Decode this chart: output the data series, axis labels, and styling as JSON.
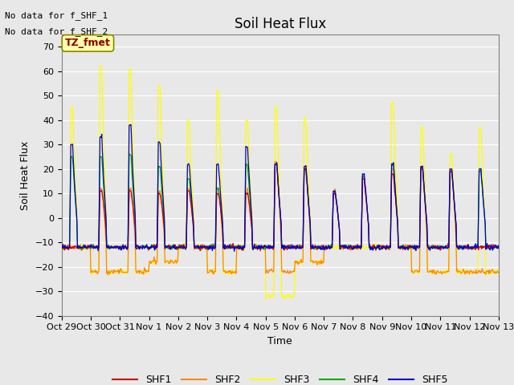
{
  "title": "Soil Heat Flux",
  "xlabel": "Time",
  "ylabel": "Soil Heat Flux",
  "ylim": [
    -40,
    75
  ],
  "yticks": [
    -40,
    -30,
    -20,
    -10,
    0,
    10,
    20,
    30,
    40,
    50,
    60,
    70
  ],
  "bg_color": "#e8e8e8",
  "plot_bg_color": "#e8e8e8",
  "annotation_text1": "No data for f_SHF_1",
  "annotation_text2": "No data for f_SHF_2",
  "tz_label": "TZ_fmet",
  "legend_labels": [
    "SHF1",
    "SHF2",
    "SHF3",
    "SHF4",
    "SHF5"
  ],
  "colors": {
    "SHF1": "#cc0000",
    "SHF2": "#ff8800",
    "SHF3": "#ffff00",
    "SHF4": "#00aa00",
    "SHF5": "#0000cc"
  },
  "x_tick_labels": [
    "Oct 29",
    "Oct 30",
    "Oct 31",
    "Nov 1",
    "Nov 2",
    "Nov 3",
    "Nov 4",
    "Nov 5",
    "Nov 6",
    "Nov 7",
    "Nov 8",
    "Nov 9",
    "Nov 10",
    "Nov 11",
    "Nov 12",
    "Nov 13"
  ],
  "num_days": 15,
  "points_per_day": 48,
  "shf3_day_peaks": [
    45,
    62,
    61,
    54,
    40,
    52,
    40,
    45,
    41,
    0,
    0,
    47,
    37,
    26,
    37
  ],
  "shf5_day_peaks": [
    30,
    33,
    38,
    31,
    22,
    22,
    29,
    22,
    21,
    11,
    18,
    22,
    21,
    20,
    20
  ],
  "shf4_day_peaks": [
    25,
    25,
    26,
    21,
    16,
    12,
    22,
    22,
    20,
    10,
    17,
    22,
    20,
    19,
    19
  ],
  "shf1_day_peaks": [
    0,
    11,
    11,
    10,
    11,
    10,
    10,
    22,
    20,
    10,
    16,
    18,
    20,
    19,
    0
  ],
  "shf2_day_peaks": [
    0,
    12,
    12,
    11,
    12,
    12,
    11,
    23,
    21,
    11,
    17,
    20,
    21,
    20,
    0
  ],
  "night_base": -12,
  "night_base_shf3": -22,
  "shf3_night_special_day5": -33
}
